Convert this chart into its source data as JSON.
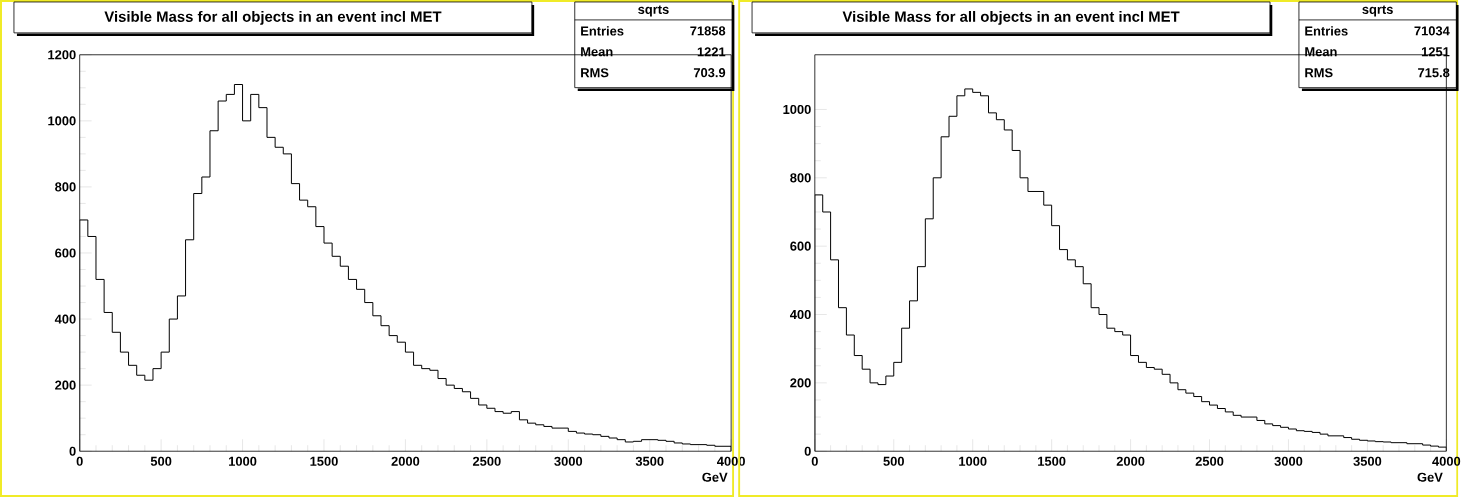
{
  "chart_data": [
    {
      "type": "histogram",
      "title": "Visible Mass for all objects in an event incl MET",
      "xlabel": "GeV",
      "color": "#000000",
      "annotations": [
        "sqrts",
        "Entries",
        "71858",
        "Mean",
        "1221",
        "RMS",
        "703.9"
      ],
      "xlim": [
        0,
        4000
      ],
      "ylim": [
        0,
        1200
      ],
      "xticks": [
        0,
        500,
        1000,
        1500,
        2000,
        2500,
        3000,
        3500,
        4000
      ],
      "yticks": [
        0,
        200,
        400,
        600,
        800,
        1000,
        1200
      ],
      "bins": [
        0,
        50,
        100,
        150,
        200,
        250,
        300,
        350,
        400,
        450,
        500,
        550,
        600,
        650,
        700,
        750,
        800,
        850,
        900,
        950,
        1000,
        1050,
        1100,
        1150,
        1200,
        1250,
        1300,
        1350,
        1400,
        1450,
        1500,
        1550,
        1600,
        1650,
        1700,
        1750,
        1800,
        1850,
        1900,
        1950,
        2000,
        2050,
        2100,
        2150,
        2200,
        2250,
        2300,
        2350,
        2400,
        2450,
        2500,
        2550,
        2600,
        2650,
        2700,
        2750,
        2800,
        2850,
        2900,
        2950,
        3000,
        3050,
        3100,
        3150,
        3200,
        3250,
        3300,
        3350,
        3400,
        3450,
        3500,
        3550,
        3600,
        3650,
        3700,
        3750,
        3800,
        3850,
        3900,
        3950,
        4000
      ],
      "values": [
        700,
        650,
        520,
        420,
        360,
        300,
        260,
        230,
        215,
        250,
        300,
        400,
        470,
        640,
        780,
        830,
        970,
        1060,
        1080,
        1110,
        1000,
        1080,
        1040,
        950,
        920,
        900,
        810,
        760,
        740,
        680,
        630,
        590,
        560,
        520,
        490,
        450,
        410,
        380,
        350,
        330,
        300,
        260,
        250,
        245,
        220,
        200,
        190,
        180,
        160,
        140,
        130,
        120,
        115,
        120,
        95,
        85,
        80,
        75,
        70,
        70,
        60,
        55,
        52,
        50,
        45,
        40,
        35,
        28,
        30,
        35,
        35,
        33,
        30,
        25,
        22,
        20,
        20,
        18,
        15,
        15
      ]
    },
    {
      "type": "histogram",
      "title": "Visible Mass for all objects in an event incl MET",
      "xlabel": "GeV",
      "color": "#000000",
      "annotations": [
        "sqrts",
        "Entries",
        "71034",
        "Mean",
        "1251",
        "RMS",
        "715.8"
      ],
      "xlim": [
        0,
        4000
      ],
      "ylim": [
        0,
        1160
      ],
      "xticks": [
        0,
        500,
        1000,
        1500,
        2000,
        2500,
        3000,
        3500,
        4000
      ],
      "yticks": [
        0,
        200,
        400,
        600,
        800,
        1000
      ],
      "bins": [
        0,
        50,
        100,
        150,
        200,
        250,
        300,
        350,
        400,
        450,
        500,
        550,
        600,
        650,
        700,
        750,
        800,
        850,
        900,
        950,
        1000,
        1050,
        1100,
        1150,
        1200,
        1250,
        1300,
        1350,
        1400,
        1450,
        1500,
        1550,
        1600,
        1650,
        1700,
        1750,
        1800,
        1850,
        1900,
        1950,
        2000,
        2050,
        2100,
        2150,
        2200,
        2250,
        2300,
        2350,
        2400,
        2450,
        2500,
        2550,
        2600,
        2650,
        2700,
        2750,
        2800,
        2850,
        2900,
        2950,
        3000,
        3050,
        3100,
        3150,
        3200,
        3250,
        3300,
        3350,
        3400,
        3450,
        3500,
        3550,
        3600,
        3650,
        3700,
        3750,
        3800,
        3850,
        3900,
        3950,
        4000
      ],
      "values": [
        750,
        700,
        560,
        420,
        340,
        280,
        240,
        200,
        195,
        220,
        260,
        360,
        440,
        540,
        680,
        800,
        920,
        980,
        1040,
        1060,
        1050,
        1040,
        990,
        970,
        940,
        880,
        800,
        760,
        760,
        720,
        660,
        590,
        560,
        540,
        490,
        420,
        400,
        360,
        350,
        340,
        280,
        260,
        245,
        240,
        225,
        200,
        180,
        170,
        160,
        145,
        135,
        125,
        115,
        105,
        100,
        100,
        90,
        80,
        75,
        70,
        65,
        60,
        58,
        55,
        50,
        45,
        45,
        40,
        35,
        32,
        30,
        28,
        27,
        25,
        25,
        22,
        22,
        18,
        15,
        12
      ]
    }
  ]
}
